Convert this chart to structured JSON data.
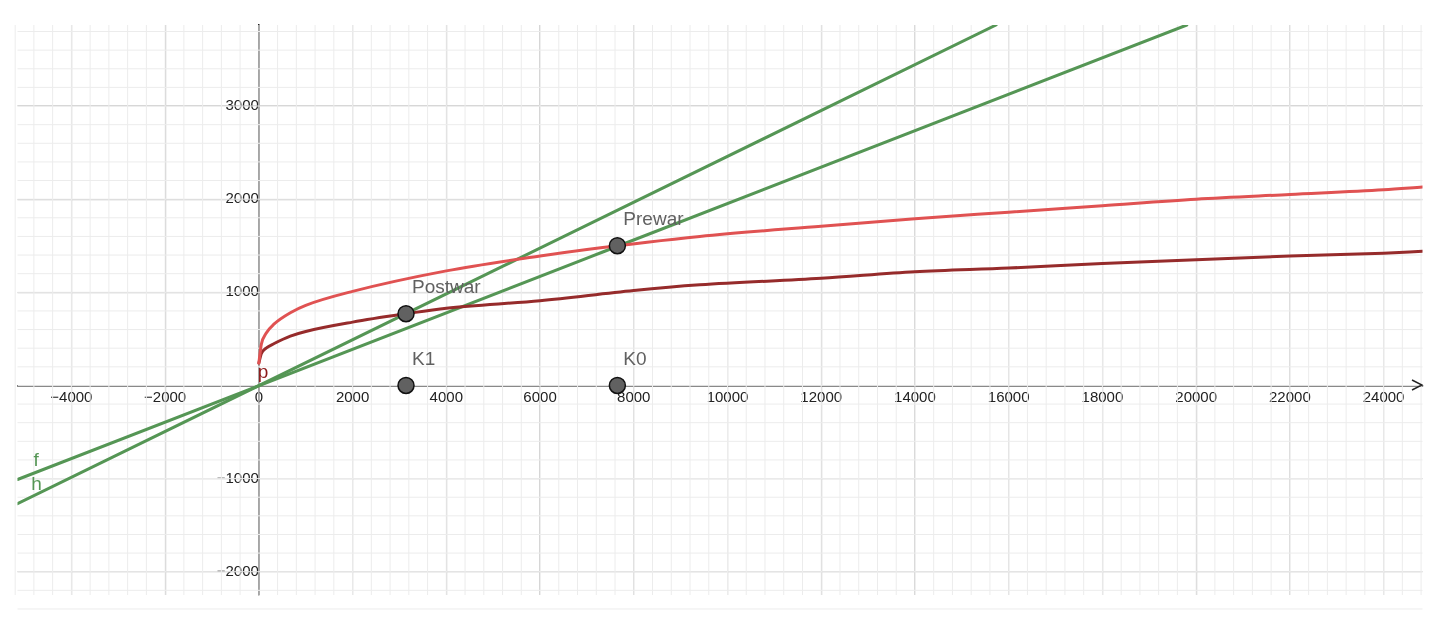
{
  "chart_data": {
    "type": "line",
    "xlim": [
      -5150,
      24830
    ],
    "ylim": [
      -2250,
      3870
    ],
    "xticks": [
      -4000,
      -2000,
      0,
      2000,
      4000,
      6000,
      8000,
      10000,
      12000,
      14000,
      16000,
      18000,
      20000,
      22000,
      24000
    ],
    "yticks": [
      -2000,
      -1000,
      {
        "value": 0,
        "label": null
      },
      1000,
      2000,
      3000
    ],
    "grid": true,
    "legend": false,
    "line_style": "solid",
    "annotations": [
      {
        "text": "p",
        "x": 0,
        "y": 240
      }
    ],
    "series": [
      {
        "color": "#e05252",
        "x": [
          0,
          52,
          155,
          328,
          672,
          1000,
          2000,
          4000,
          6000,
          7000,
          9410,
          12000,
          14000,
          16000,
          18000,
          20000,
          22000,
          24000,
          24830
        ],
        "values": [
          240,
          440,
          560,
          660,
          780,
          860,
          1010,
          1230,
          1390,
          1460,
          1600,
          1710,
          1790,
          1860,
          1930,
          2000,
          2050,
          2100,
          2130
        ]
      },
      {
        "color": "#962b2b",
        "x": [
          0,
          52,
          155,
          328,
          672,
          1000,
          2000,
          3140,
          4000,
          6000,
          8000,
          9410,
          12000,
          14000,
          16000,
          18000,
          20000,
          22000,
          24000,
          24830
        ],
        "values": [
          240,
          340,
          400,
          450,
          530,
          580,
          680,
          770,
          830,
          910,
          1020,
          1080,
          1150,
          1220,
          1260,
          1310,
          1350,
          1390,
          1420,
          1440
        ]
      },
      {
        "name": "f",
        "color": "#559655",
        "x": [
          -5150,
          19800
        ],
        "values": [
          -1010,
          3870
        ]
      },
      {
        "name": "h",
        "color": "#559655",
        "x": [
          -5150,
          15730
        ],
        "values": [
          -1270,
          3870
        ]
      },
      {
        "type": "scatter",
        "name": "Prewar",
        "color": "#616161",
        "marker": "circle",
        "x": [
          7650
        ],
        "values": [
          1500
        ]
      },
      {
        "type": "scatter",
        "name": "Postwar",
        "color": "#616161",
        "marker": "circle",
        "x": [
          3140
        ],
        "values": [
          770
        ]
      },
      {
        "type": "scatter",
        "name": "K1",
        "color": "#616161",
        "marker": "circle",
        "x": [
          3140
        ],
        "values": [
          0
        ]
      },
      {
        "type": "scatter",
        "name": "K0",
        "color": "#616161",
        "marker": "circle",
        "x": [
          7650
        ],
        "values": [
          0
        ]
      }
    ]
  }
}
